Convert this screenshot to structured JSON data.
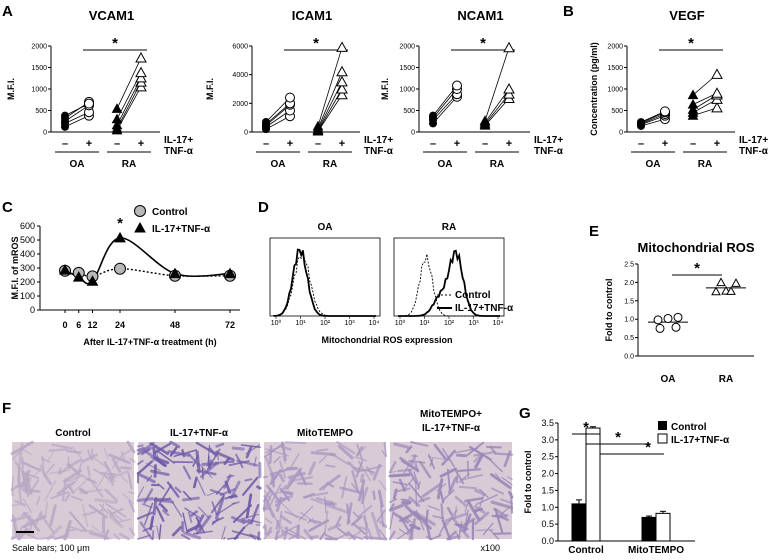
{
  "panels": {
    "A": {
      "letter": "A",
      "charts": [
        {
          "title": "VCAM1",
          "ylabel": "M.F.I.",
          "ylim": [
            0,
            2000
          ],
          "ticks": [
            0,
            500,
            1000,
            1500,
            2000
          ]
        },
        {
          "title": "ICAM1",
          "ylabel": "M.F.I.",
          "ylim": [
            0,
            6000
          ],
          "ticks": [
            0,
            2000,
            4000,
            6000
          ]
        },
        {
          "title": "NCAM1",
          "ylabel": "M.F.I.",
          "ylim": [
            0,
            2000
          ],
          "ticks": [
            0,
            500,
            1000,
            1500,
            2000
          ]
        }
      ]
    },
    "B": {
      "letter": "B",
      "charts": [
        {
          "title": "VEGF",
          "ylabel": "Concentration (pg/ml)",
          "ylim": [
            0,
            2000
          ],
          "ticks": [
            0,
            500,
            1000,
            1500,
            2000
          ]
        }
      ]
    },
    "C": {
      "letter": "C",
      "ylabel": "M.F.I. of mROS",
      "xlabel": "After IL-17+TNF-α treatment (h)",
      "ticks_y": [
        0,
        100,
        200,
        300,
        400,
        500,
        600
      ],
      "ticks_x": [
        0,
        6,
        12,
        24,
        48,
        72
      ],
      "legend": [
        "Control",
        "IL-17+TNF-α"
      ],
      "star": "*"
    },
    "D": {
      "letter": "D",
      "subtitles": [
        "OA",
        "RA"
      ],
      "xlabel": "Mitochondrial ROS expression",
      "legend": [
        "Control",
        "IL-17+TNF-α"
      ],
      "xticks": [
        "10⁰",
        "10¹",
        "10²",
        "10³",
        "10⁴"
      ]
    },
    "E": {
      "letter": "E",
      "title": "Mitochondrial ROS",
      "ylabel": "Fold to control",
      "ticks": [
        "0.0",
        "0.5",
        "1.0",
        "1.5",
        "2.0",
        "2.5"
      ],
      "groups": [
        "OA",
        "RA"
      ],
      "star": "*"
    },
    "F": {
      "letter": "F",
      "images": [
        "Control",
        "IL-17+TNF-α",
        "MitoTEMPO",
        "MitoTEMPO+\nIL-17+TNF-α"
      ],
      "image_line1": [
        "Control",
        "IL-17+TNF-α",
        "MitoTEMPO",
        "MitoTEMPO+"
      ],
      "image_line2": [
        "",
        "",
        "",
        "IL-17+TNF-α"
      ],
      "scale": "Scale bars; 100 μm",
      "mag": "x100"
    },
    "G": {
      "letter": "G",
      "ylabel": "Fold to control",
      "ticks": [
        "0.0",
        "0.5",
        "1.0",
        "1.5",
        "2.0",
        "2.5",
        "3.0",
        "3.5"
      ],
      "groups": [
        "Control",
        "MitoTEMPO"
      ],
      "legend": [
        "Control",
        "IL-17+TNF-α"
      ]
    }
  },
  "labels": {
    "minus": "–",
    "plus": "+",
    "treat1": "IL-17+",
    "treat2": "TNF-α",
    "oa": "OA",
    "ra": "RA",
    "star": "*"
  },
  "chart_data": [
    {
      "type": "scatter",
      "panel": "A",
      "title": "VCAM1",
      "ylabel": "M.F.I.",
      "ylim": [
        0,
        2000
      ],
      "groups": [
        "OA –",
        "OA +",
        "RA –",
        "RA +"
      ],
      "series": [
        {
          "name": "OA",
          "paired": [
            [
              120,
              380
            ],
            [
              200,
              460
            ],
            [
              250,
              620
            ],
            [
              320,
              700
            ],
            [
              380,
              660
            ]
          ]
        },
        {
          "name": "RA",
          "paired": [
            [
              40,
              1050
            ],
            [
              80,
              1160
            ],
            [
              160,
              1260
            ],
            [
              300,
              1380
            ],
            [
              540,
              1720
            ]
          ]
        }
      ]
    },
    {
      "type": "scatter",
      "panel": "A",
      "title": "ICAM1",
      "ylabel": "M.F.I.",
      "ylim": [
        0,
        6000
      ],
      "groups": [
        "OA –",
        "OA +",
        "RA –",
        "RA +"
      ],
      "series": [
        {
          "name": "OA",
          "paired": [
            [
              200,
              1100
            ],
            [
              350,
              1500
            ],
            [
              450,
              1900
            ],
            [
              550,
              2000
            ],
            [
              700,
              2400
            ]
          ]
        },
        {
          "name": "RA",
          "paired": [
            [
              40,
              2600
            ],
            [
              80,
              3000
            ],
            [
              150,
              3500
            ],
            [
              250,
              4200
            ],
            [
              400,
              5900
            ]
          ]
        }
      ]
    },
    {
      "type": "scatter",
      "panel": "A",
      "title": "NCAM1",
      "ylabel": "M.F.I.",
      "ylim": [
        0,
        2000
      ],
      "groups": [
        "OA –",
        "OA +",
        "RA –",
        "RA +"
      ],
      "series": [
        {
          "name": "OA",
          "paired": [
            [
              200,
              820
            ],
            [
              280,
              880
            ],
            [
              330,
              1000
            ],
            [
              380,
              1080
            ]
          ]
        },
        {
          "name": "RA",
          "paired": [
            [
              150,
              780
            ],
            [
              180,
              880
            ],
            [
              220,
              1000
            ],
            [
              260,
              1960
            ]
          ]
        }
      ]
    },
    {
      "type": "scatter",
      "panel": "B",
      "title": "VEGF",
      "ylabel": "Concentration (pg/ml)",
      "ylim": [
        0,
        2000
      ],
      "groups": [
        "OA –",
        "OA +",
        "RA –",
        "RA +"
      ],
      "series": [
        {
          "name": "OA",
          "paired": [
            [
              140,
              300
            ],
            [
              170,
              380
            ],
            [
              190,
              420
            ],
            [
              210,
              460
            ],
            [
              230,
              480
            ]
          ]
        },
        {
          "name": "RA",
          "paired": [
            [
              380,
              560
            ],
            [
              450,
              760
            ],
            [
              520,
              860
            ],
            [
              640,
              900
            ],
            [
              860,
              1340
            ]
          ]
        }
      ]
    },
    {
      "type": "line",
      "panel": "C",
      "title": "",
      "xlabel": "After IL-17+TNF-α treatment (h)",
      "ylabel": "M.F.I. of mROS",
      "ylim": [
        0,
        600
      ],
      "x": [
        0,
        6,
        12,
        24,
        48,
        72
      ],
      "series": [
        {
          "name": "Control",
          "values": [
            280,
            265,
            240,
            295,
            245,
            245
          ]
        },
        {
          "name": "IL-17+TNF-α",
          "values": [
            285,
            235,
            205,
            515,
            260,
            260
          ]
        }
      ]
    },
    {
      "type": "scatter",
      "panel": "E",
      "title": "Mitochondrial ROS",
      "ylabel": "Fold to control",
      "ylim": [
        0,
        2.5
      ],
      "series": [
        {
          "name": "OA",
          "values": [
            0.75,
            0.78,
            0.98,
            1.02,
            1.05
          ],
          "mean": 0.92
        },
        {
          "name": "RA",
          "values": [
            1.75,
            1.77,
            1.98,
            2.0,
            1.76
          ],
          "mean": 1.85
        }
      ]
    },
    {
      "type": "bar",
      "panel": "G",
      "ylabel": "Fold to control",
      "ylim": [
        0,
        3.5
      ],
      "categories": [
        "Control",
        "MitoTEMPO"
      ],
      "series": [
        {
          "name": "Control",
          "values": [
            1.1,
            0.7
          ],
          "errors": [
            0.12,
            0.04
          ]
        },
        {
          "name": "IL-17+TNF-α",
          "values": [
            3.35,
            0.82
          ],
          "errors": [
            0.04,
            0.06
          ]
        }
      ]
    }
  ]
}
